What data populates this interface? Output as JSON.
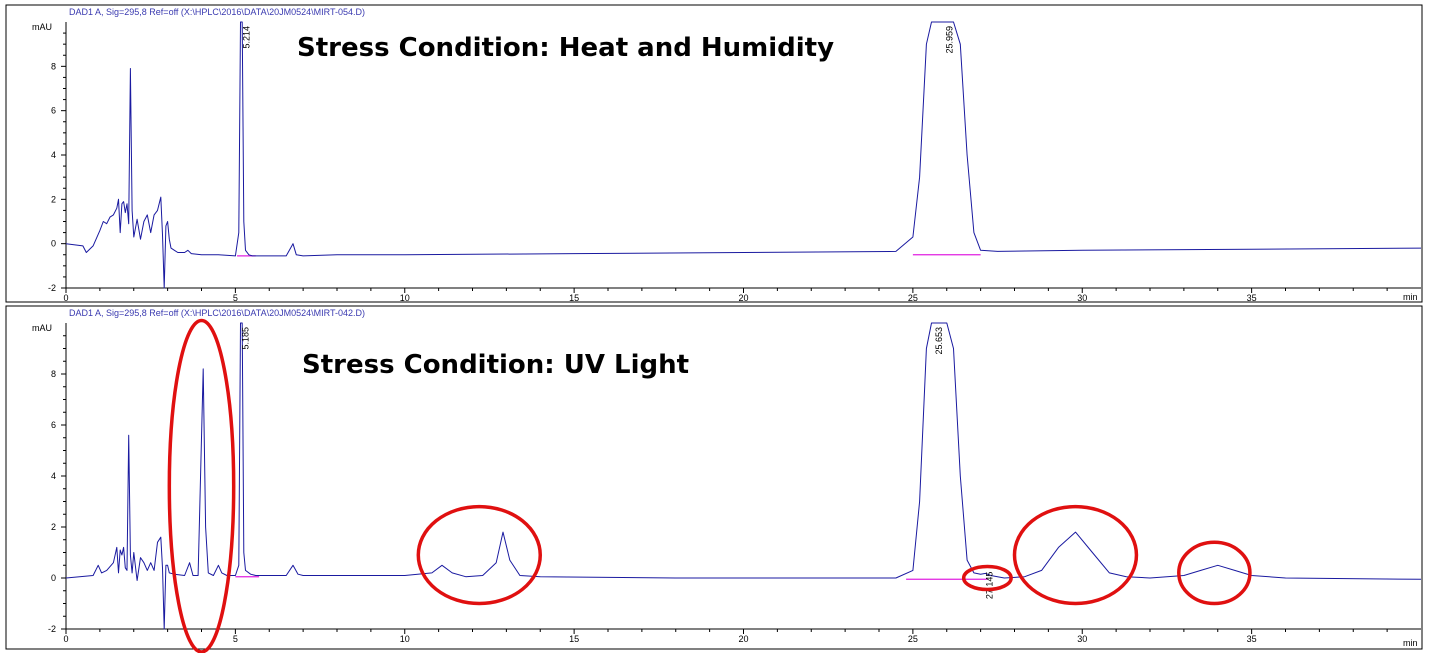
{
  "chart_data": [
    {
      "type": "line",
      "header": "DAD1 A, Sig=295,8 Ref=off (X:\\HPLC\\2016\\DATA\\20JM0524\\MIRT-054.D)",
      "title": "Stress Condition: Heat and Humidity",
      "ylabel": "mAU",
      "xlabel": "min",
      "xlim": [
        0,
        40
      ],
      "ylim": [
        -2,
        10
      ],
      "xticks": [
        "0",
        "5",
        "10",
        "15",
        "20",
        "25",
        "30",
        "35"
      ],
      "yticks": [
        "-2",
        "0",
        "2",
        "4",
        "6",
        "8"
      ],
      "line_color": "#1a1aa0",
      "baseline_color": "#e020e0",
      "peak_labels": [
        {
          "x": 5.214,
          "text": "5.214"
        },
        {
          "x": 25.959,
          "text": "25.959"
        }
      ],
      "series": [
        {
          "x": [
            0,
            0.5,
            0.6,
            0.8,
            1.0,
            1.1,
            1.2,
            1.3,
            1.4,
            1.5,
            1.55,
            1.6,
            1.65,
            1.7,
            1.75,
            1.8,
            1.85,
            1.9,
            1.95,
            2.0,
            2.1,
            2.2,
            2.3,
            2.4,
            2.5,
            2.6,
            2.7,
            2.8,
            2.85,
            2.9,
            2.95,
            3.0,
            3.05,
            3.1,
            3.2,
            3.3,
            3.5,
            3.6,
            3.7,
            4.0,
            4.5,
            5.0,
            5.1,
            5.15,
            5.2,
            5.25,
            5.3,
            5.4,
            5.5,
            6.0,
            6.5,
            6.7,
            6.8,
            7.0,
            8.0,
            10.0,
            15.0,
            20.0,
            24.5,
            25.0,
            25.2,
            25.4,
            25.55,
            25.7,
            25.96,
            26.2,
            26.4,
            26.6,
            26.8,
            27.0,
            27.5,
            30.0,
            35.0,
            40.0
          ],
          "y": [
            0,
            -0.1,
            -0.4,
            -0.1,
            0.6,
            1.0,
            0.9,
            1.2,
            1.3,
            1.6,
            2.0,
            0.5,
            1.8,
            1.9,
            1.4,
            1.8,
            0.9,
            7.9,
            1.5,
            0.3,
            1.1,
            0.2,
            1.0,
            1.3,
            0.5,
            1.3,
            1.5,
            2.1,
            0.4,
            -3.0,
            0.8,
            1.0,
            0.2,
            -0.2,
            -0.3,
            -0.4,
            -0.4,
            -0.3,
            -0.45,
            -0.5,
            -0.5,
            -0.55,
            0.5,
            10.5,
            10.5,
            1.0,
            -0.3,
            -0.5,
            -0.55,
            -0.55,
            -0.55,
            0.0,
            -0.5,
            -0.55,
            -0.5,
            -0.5,
            -0.45,
            -0.4,
            -0.35,
            0.3,
            3.0,
            9.0,
            10.5,
            10.5,
            10.5,
            10.5,
            9.0,
            4.0,
            0.5,
            -0.3,
            -0.35,
            -0.3,
            -0.25,
            -0.2
          ]
        }
      ],
      "baselines": [
        {
          "x": [
            5.05,
            5.6
          ],
          "y": [
            -0.55,
            -0.55
          ]
        },
        {
          "x": [
            25.0,
            27.0
          ],
          "y": [
            -0.5,
            -0.5
          ]
        }
      ],
      "annotations": []
    },
    {
      "type": "line",
      "header": "DAD1 A, Sig=295,8 Ref=off (X:\\HPLC\\2016\\DATA\\20JM0524\\MIRT-042.D)",
      "title": "Stress Condition: UV Light",
      "ylabel": "mAU",
      "xlabel": "min",
      "xlim": [
        0,
        40
      ],
      "ylim": [
        -2,
        10
      ],
      "xticks": [
        "0",
        "5",
        "10",
        "15",
        "20",
        "25",
        "30",
        "35"
      ],
      "yticks": [
        "-2",
        "0",
        "2",
        "4",
        "6",
        "8"
      ],
      "line_color": "#1a1aa0",
      "baseline_color": "#e020e0",
      "peak_labels": [
        {
          "x": 5.185,
          "text": "5.185"
        },
        {
          "x": 25.653,
          "text": "25.653"
        },
        {
          "x": 27.145,
          "text": "27.145"
        }
      ],
      "series": [
        {
          "x": [
            0,
            0.8,
            0.95,
            1.05,
            1.2,
            1.4,
            1.5,
            1.55,
            1.6,
            1.65,
            1.7,
            1.75,
            1.8,
            1.85,
            1.9,
            1.95,
            2.0,
            2.1,
            2.2,
            2.3,
            2.4,
            2.5,
            2.6,
            2.7,
            2.8,
            2.85,
            2.9,
            2.95,
            3.0,
            3.05,
            3.2,
            3.5,
            3.65,
            3.75,
            3.9,
            4.05,
            4.12,
            4.2,
            4.35,
            4.5,
            4.6,
            4.75,
            5.0,
            5.1,
            5.15,
            5.2,
            5.25,
            5.3,
            5.45,
            5.6,
            6.0,
            6.5,
            6.7,
            6.85,
            7.0,
            8.0,
            10.0,
            10.8,
            11.1,
            11.4,
            11.8,
            12.3,
            12.7,
            12.9,
            13.1,
            13.4,
            14.0,
            18.0,
            22.0,
            24.5,
            25.0,
            25.2,
            25.4,
            25.55,
            25.65,
            26.0,
            26.2,
            26.4,
            26.6,
            26.8,
            27.0,
            27.145,
            27.3,
            27.7,
            28.3,
            28.8,
            29.3,
            29.8,
            30.3,
            30.8,
            31.3,
            32.0,
            33.0,
            33.5,
            34.0,
            34.5,
            35.0,
            36.0,
            40.0
          ],
          "y": [
            0,
            0.1,
            0.5,
            0.2,
            0.3,
            0.6,
            1.2,
            0.2,
            1.1,
            0.9,
            1.2,
            0.4,
            0.3,
            5.6,
            0.9,
            0.2,
            1.0,
            -0.1,
            0.8,
            0.6,
            0.3,
            0.6,
            0.3,
            1.4,
            1.6,
            0.4,
            -2.5,
            0.5,
            0.5,
            0.2,
            0.15,
            0.1,
            0.6,
            0.1,
            0.1,
            8.2,
            2.0,
            0.2,
            0.1,
            0.5,
            0.2,
            0.1,
            0.1,
            0.5,
            10.5,
            10.5,
            1.0,
            0.3,
            0.15,
            0.1,
            0.1,
            0.1,
            0.5,
            0.15,
            0.1,
            0.1,
            0.1,
            0.2,
            0.5,
            0.2,
            0.05,
            0.1,
            0.6,
            1.8,
            0.7,
            0.1,
            0.05,
            0.0,
            0.0,
            0.0,
            0.3,
            3.0,
            9.0,
            10.5,
            10.5,
            10.5,
            9.0,
            4.0,
            0.7,
            0.2,
            0.15,
            0.18,
            0.1,
            0.0,
            0.05,
            0.3,
            1.2,
            1.8,
            1.0,
            0.2,
            0.05,
            0.0,
            0.1,
            0.3,
            0.5,
            0.3,
            0.1,
            0.0,
            -0.05
          ]
        }
      ],
      "baselines": [
        {
          "x": [
            5.0,
            5.7
          ],
          "y": [
            0.05,
            0.05
          ]
        },
        {
          "x": [
            24.8,
            27.2
          ],
          "y": [
            -0.05,
            -0.05
          ]
        }
      ],
      "annotations": [
        {
          "kind": "ellipse",
          "cx": 4.0,
          "cy": 3.6,
          "rx": 0.95,
          "ry": 6.5
        },
        {
          "kind": "ellipse",
          "cx": 12.2,
          "cy": 0.9,
          "rx": 1.8,
          "ry": 1.9
        },
        {
          "kind": "ellipse",
          "cx": 27.2,
          "cy": 0.0,
          "rx": 0.7,
          "ry": 0.45
        },
        {
          "kind": "ellipse",
          "cx": 29.8,
          "cy": 0.9,
          "rx": 1.8,
          "ry": 1.9
        },
        {
          "kind": "ellipse",
          "cx": 33.9,
          "cy": 0.2,
          "rx": 1.05,
          "ry": 1.2
        }
      ]
    }
  ]
}
